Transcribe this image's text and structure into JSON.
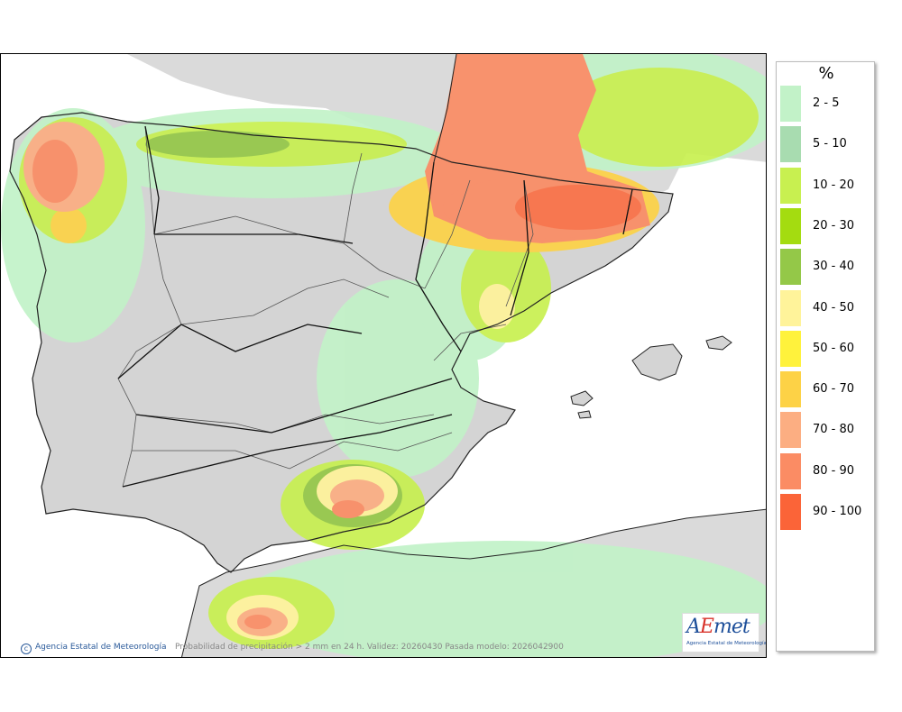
{
  "map": {
    "copyright": "Agencia Estatal de Meteorología",
    "caption": "Probabilidad de precipitación > 2 mm en 24 h. Validez: 20260430 Pasada modelo: 2026042900",
    "logo_text": "AEmet",
    "logo_subtext": "Agencia Estatal de Meteorología"
  },
  "legend": {
    "title": "%",
    "items": [
      {
        "label": "2 - 5",
        "color": "#c2f2c8"
      },
      {
        "label": "5 - 10",
        "color": "#a8dcb0"
      },
      {
        "label": "10 - 20",
        "color": "#c8f050"
      },
      {
        "label": "20 - 30",
        "color": "#a4dc10"
      },
      {
        "label": "30 - 40",
        "color": "#94c848"
      },
      {
        "label": "40 - 50",
        "color": "#fff39a"
      },
      {
        "label": "50 - 60",
        "color": "#fff23c"
      },
      {
        "label": "60 - 70",
        "color": "#fdd246"
      },
      {
        "label": "70 - 80",
        "color": "#fcae82"
      },
      {
        "label": "80 - 90",
        "color": "#fb8c64"
      },
      {
        "label": "90 - 100",
        "color": "#fb6438"
      }
    ]
  },
  "colors": {
    "land": "#d8d8d8",
    "sea": "#ffffff",
    "borders": "#222222"
  }
}
